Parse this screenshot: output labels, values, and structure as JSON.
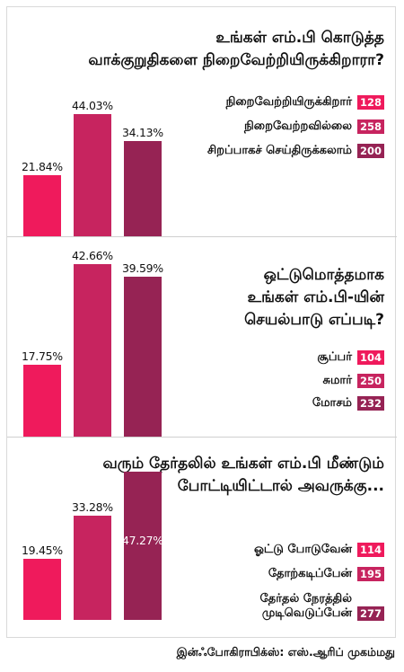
{
  "colors": {
    "c1": "#ef1a5c",
    "c2": "#c7245f",
    "c3": "#962354"
  },
  "chart_data": [
    {
      "type": "bar",
      "title": "உங்கள் எம்.பி கொடுத்த\nவாக்குறுதிகளை நிறைவேற்றியிருக்கிறாரா?",
      "categories": [
        "நிறைவேற்றியிருக்கிறார்",
        "நிறைவேற்றவில்லை",
        "சிறப்பாகச் செய்திருக்கலாம்"
      ],
      "values": [
        21.84,
        44.03,
        34.13
      ],
      "value_labels": [
        "21.84%",
        "44.03%",
        "34.13%"
      ],
      "counts": [
        "128",
        "258",
        "200"
      ]
    },
    {
      "type": "bar",
      "title": "ஒட்டுமொத்தமாக\nஉங்கள் எம்.பி-யின்\nசெயல்பாடு எப்படி?",
      "categories": [
        "சூப்பர்",
        "சுமார்",
        "மோசம்"
      ],
      "values": [
        17.75,
        42.66,
        39.59
      ],
      "value_labels": [
        "17.75%",
        "42.66%",
        "39.59%"
      ],
      "counts": [
        "104",
        "250",
        "232"
      ]
    },
    {
      "type": "bar",
      "title": "வரும் தேர்தலில் உங்கள் எம்.பி மீண்டும்\nபோட்டியிட்டால் அவருக்கு...",
      "categories": [
        "ஓட்டு போடுவேன்",
        "தோற்கடிப்பேன்",
        "தேர்தல் நேரத்தில்\nமுடிவெடுப்பேன்"
      ],
      "values": [
        19.45,
        33.28,
        47.27
      ],
      "value_labels": [
        "19.45%",
        "33.28%",
        "47.27%"
      ],
      "counts": [
        "114",
        "195",
        "277"
      ]
    }
  ],
  "credit": "இன்ஃபோகிராபிக்ஸ்: எஸ்.ஆரிப் முகம்மது"
}
